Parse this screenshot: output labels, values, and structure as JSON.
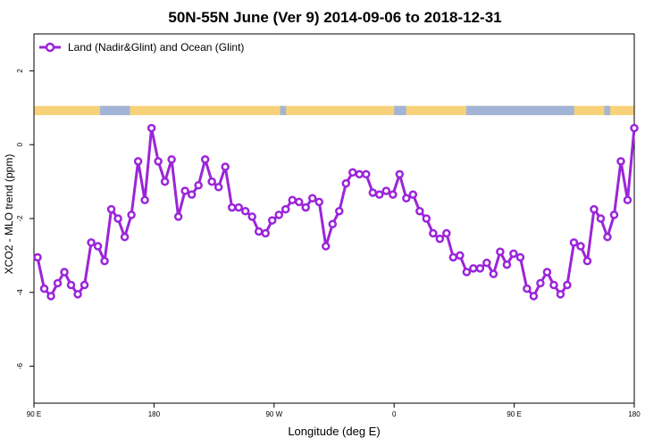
{
  "chart_data": {
    "type": "line",
    "title": "50N-55N June (Ver 9)   2014-09-06 to 2018-12-31",
    "xlabel": "Longitude (deg E)",
    "ylabel": "XCO2 - MLO trend (ppm)",
    "xlim": [
      0,
      100
    ],
    "ylim": [
      -7,
      3
    ],
    "x_ticks": [
      {
        "pos": 0,
        "label": "90 E"
      },
      {
        "pos": 20,
        "label": "180"
      },
      {
        "pos": 40,
        "label": "90 W"
      },
      {
        "pos": 60,
        "label": "0"
      },
      {
        "pos": 80,
        "label": "90 E"
      },
      {
        "pos": 100,
        "label": "180"
      }
    ],
    "y_ticks": [
      -6,
      -4,
      -2,
      0,
      2
    ],
    "grid": false,
    "legend_position": "top-left",
    "colors": {
      "series": "#9b25d9",
      "land": "#f7d27a",
      "ocean": "#a2b5d7"
    },
    "series": [
      {
        "name": "Land (Nadir&Glint) and Ocean (Glint)",
        "values": [
          -3.05,
          -3.9,
          -4.1,
          -3.75,
          -3.45,
          -3.8,
          -4.05,
          -3.8,
          -2.65,
          -2.75,
          -3.15,
          -1.75,
          -2.0,
          -2.5,
          -1.9,
          -0.45,
          -1.5,
          0.45,
          -0.45,
          -1.0,
          -0.4,
          -1.95,
          -1.25,
          -1.35,
          -1.1,
          -0.4,
          -1.0,
          -1.15,
          -0.6,
          -1.7,
          -1.7,
          -1.8,
          -1.95,
          -2.35,
          -2.4,
          -2.05,
          -1.9,
          -1.75,
          -1.5,
          -1.55,
          -1.7,
          -1.45,
          -1.55,
          -2.75,
          -2.15,
          -1.8,
          -1.05,
          -0.75,
          -0.8,
          -0.8,
          -1.3,
          -1.35,
          -1.25,
          -1.35,
          -0.8,
          -1.45,
          -1.35,
          -1.8,
          -2.0,
          -2.4,
          -2.55,
          -2.4,
          -3.05,
          -3.0,
          -3.45,
          -3.35,
          -3.35,
          -3.2,
          -3.5,
          -2.9,
          -3.25,
          -2.95,
          -3.05,
          -3.9,
          -4.1,
          -3.75,
          -3.45,
          -3.8,
          -4.05,
          -3.8,
          -2.65,
          -2.75,
          -3.15,
          -1.75,
          -2.0,
          -2.5,
          -1.9,
          -0.45,
          -1.5,
          0.45
        ]
      }
    ],
    "surface_bar": {
      "y_range": [
        0.8,
        1.05
      ],
      "ocean_spans": [
        [
          11,
          16
        ],
        [
          41,
          42
        ],
        [
          60,
          62
        ],
        [
          72,
          90
        ],
        [
          95,
          96
        ]
      ]
    }
  }
}
